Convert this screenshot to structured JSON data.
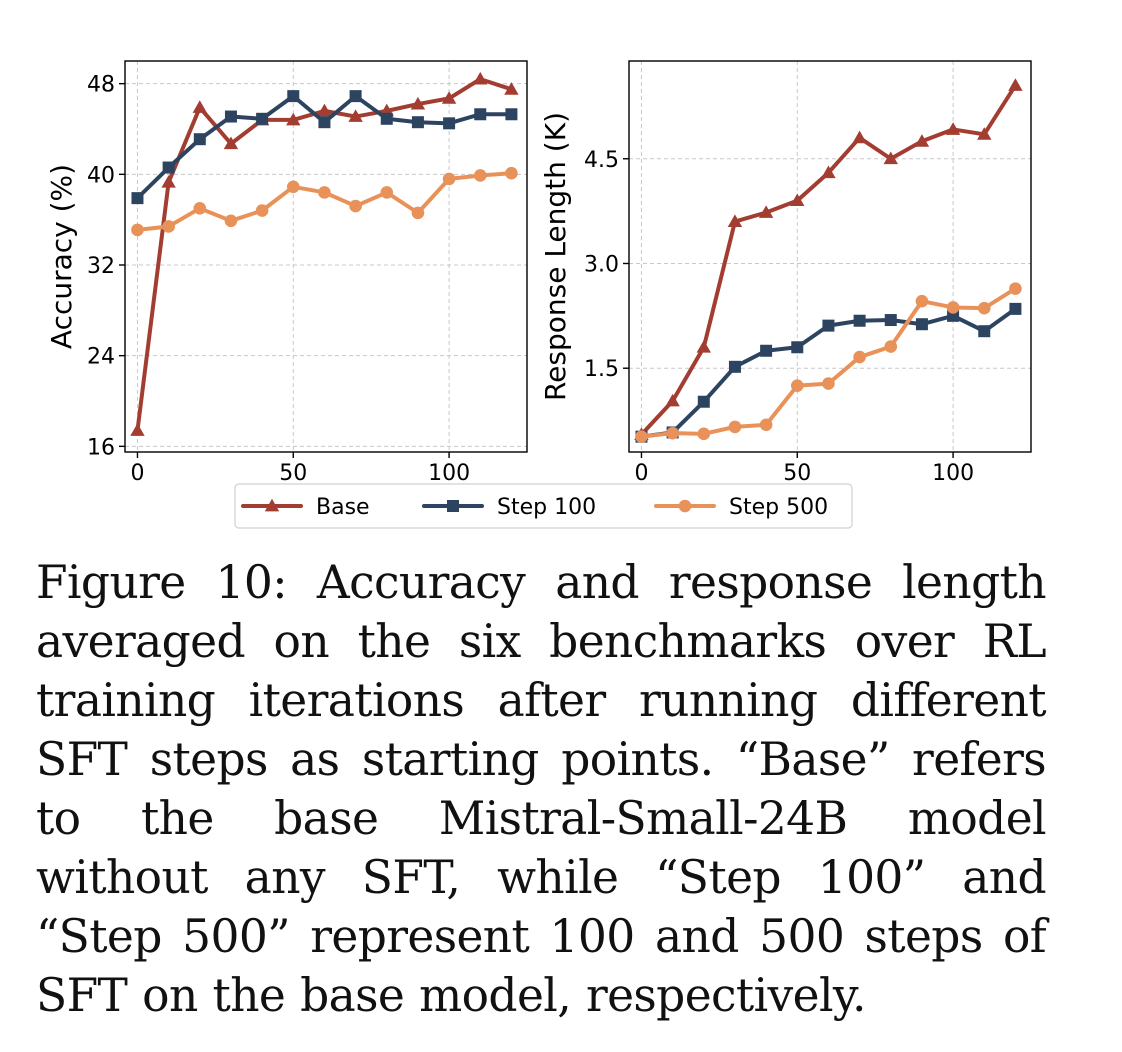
{
  "chart_data": [
    {
      "type": "line",
      "title": "",
      "xlabel": "",
      "ylabel": "Accuracy (%)",
      "xlim": [
        -4,
        125
      ],
      "ylim": [
        15.5,
        50
      ],
      "xticks": [
        0,
        50,
        100
      ],
      "yticks": [
        16,
        24,
        32,
        40,
        48
      ],
      "ytick_labels": [
        "16",
        "24",
        "32",
        "40",
        "48"
      ],
      "grid": true,
      "x": [
        0,
        10,
        20,
        30,
        40,
        50,
        60,
        70,
        80,
        90,
        100,
        110,
        120
      ],
      "series": [
        {
          "name": "Base",
          "marker": "triangle",
          "color": "#a33d32",
          "values": [
            17.4,
            39.3,
            45.9,
            42.7,
            44.8,
            44.8,
            45.6,
            45.1,
            45.6,
            46.2,
            46.7,
            48.4,
            47.5
          ]
        },
        {
          "name": "Step 100",
          "marker": "square",
          "color": "#2d4460",
          "values": [
            37.9,
            40.6,
            43.1,
            45.1,
            44.9,
            46.9,
            44.6,
            46.9,
            44.9,
            44.6,
            44.5,
            45.3,
            45.3
          ]
        },
        {
          "name": "Step 500",
          "marker": "circle",
          "color": "#e8925a",
          "values": [
            35.1,
            35.4,
            37.0,
            35.9,
            36.8,
            38.9,
            38.4,
            37.2,
            38.4,
            36.6,
            39.6,
            39.9,
            40.1
          ]
        }
      ]
    },
    {
      "type": "line",
      "title": "",
      "xlabel": "",
      "ylabel": "Response Length (K)",
      "xlim": [
        -4,
        125
      ],
      "ylim": [
        0.3,
        5.9
      ],
      "xticks": [
        0,
        50,
        100
      ],
      "yticks": [
        1.5,
        3.0,
        4.5
      ],
      "ytick_labels": [
        "1.5",
        "3.0",
        "4.5"
      ],
      "grid": true,
      "x": [
        0,
        10,
        20,
        30,
        40,
        50,
        60,
        70,
        80,
        90,
        100,
        110,
        120
      ],
      "series": [
        {
          "name": "Base",
          "marker": "triangle",
          "color": "#a33d32",
          "values": [
            0.55,
            1.03,
            1.8,
            3.6,
            3.73,
            3.9,
            4.3,
            4.8,
            4.5,
            4.75,
            4.92,
            4.85,
            5.55
          ]
        },
        {
          "name": "Step 100",
          "marker": "square",
          "color": "#2d4460",
          "values": [
            0.52,
            0.58,
            1.02,
            1.52,
            1.75,
            1.8,
            2.11,
            2.18,
            2.19,
            2.13,
            2.25,
            2.03,
            2.35
          ]
        },
        {
          "name": "Step 500",
          "marker": "circle",
          "color": "#e8925a",
          "values": [
            0.52,
            0.57,
            0.56,
            0.66,
            0.69,
            1.25,
            1.28,
            1.66,
            1.81,
            2.46,
            2.37,
            2.36,
            2.64
          ]
        }
      ]
    }
  ],
  "legend": {
    "placement": "bottom-center",
    "entries": [
      "Base",
      "Step 100",
      "Step 500"
    ]
  },
  "caption": "Figure 10: Accuracy and response length averaged on the six benchmarks over RL training iterations after running different SFT steps as starting points. “Base” refers to the base Mistral-Small-24B model without any SFT, while “Step 100” and “Step 500” represent 100 and 500 steps of SFT on the base model, respectively."
}
